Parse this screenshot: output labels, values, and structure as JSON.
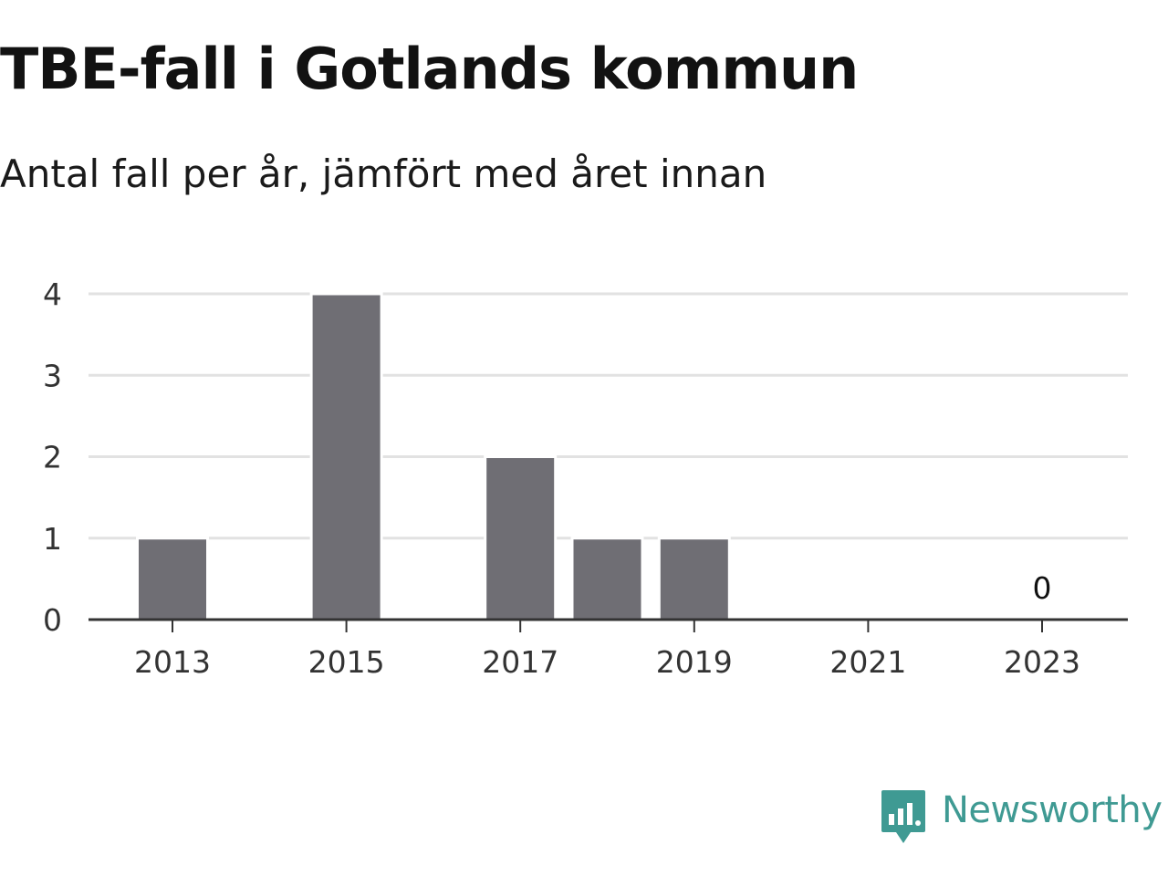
{
  "chart_data": {
    "type": "bar",
    "title": "TBE-fall i Gotlands kommun",
    "subtitle": "Antal fall per år, jämfört med året innan",
    "categories": [
      "2013",
      "2014",
      "2015",
      "2016",
      "2017",
      "2018",
      "2019",
      "2020",
      "2021",
      "2022",
      "2023"
    ],
    "values": [
      1,
      0,
      4,
      0,
      2,
      1,
      1,
      0,
      0,
      0,
      0
    ],
    "x_tick_labels": [
      "2013",
      "2015",
      "2017",
      "2019",
      "2021",
      "2023"
    ],
    "y_ticks": [
      0,
      1,
      2,
      3,
      4
    ],
    "ylim": [
      0,
      4
    ],
    "xlabel": "",
    "ylabel": "",
    "grid": true,
    "annotations": [
      {
        "category": "2023",
        "text": "0"
      }
    ],
    "colors": {
      "bar": "#6f6e74",
      "grid": "#e2e2e2",
      "axis": "#333333"
    }
  },
  "brand": {
    "name": "Newsworthy",
    "icon": "newsworthy-logo-icon",
    "color": "#3f9a93"
  }
}
